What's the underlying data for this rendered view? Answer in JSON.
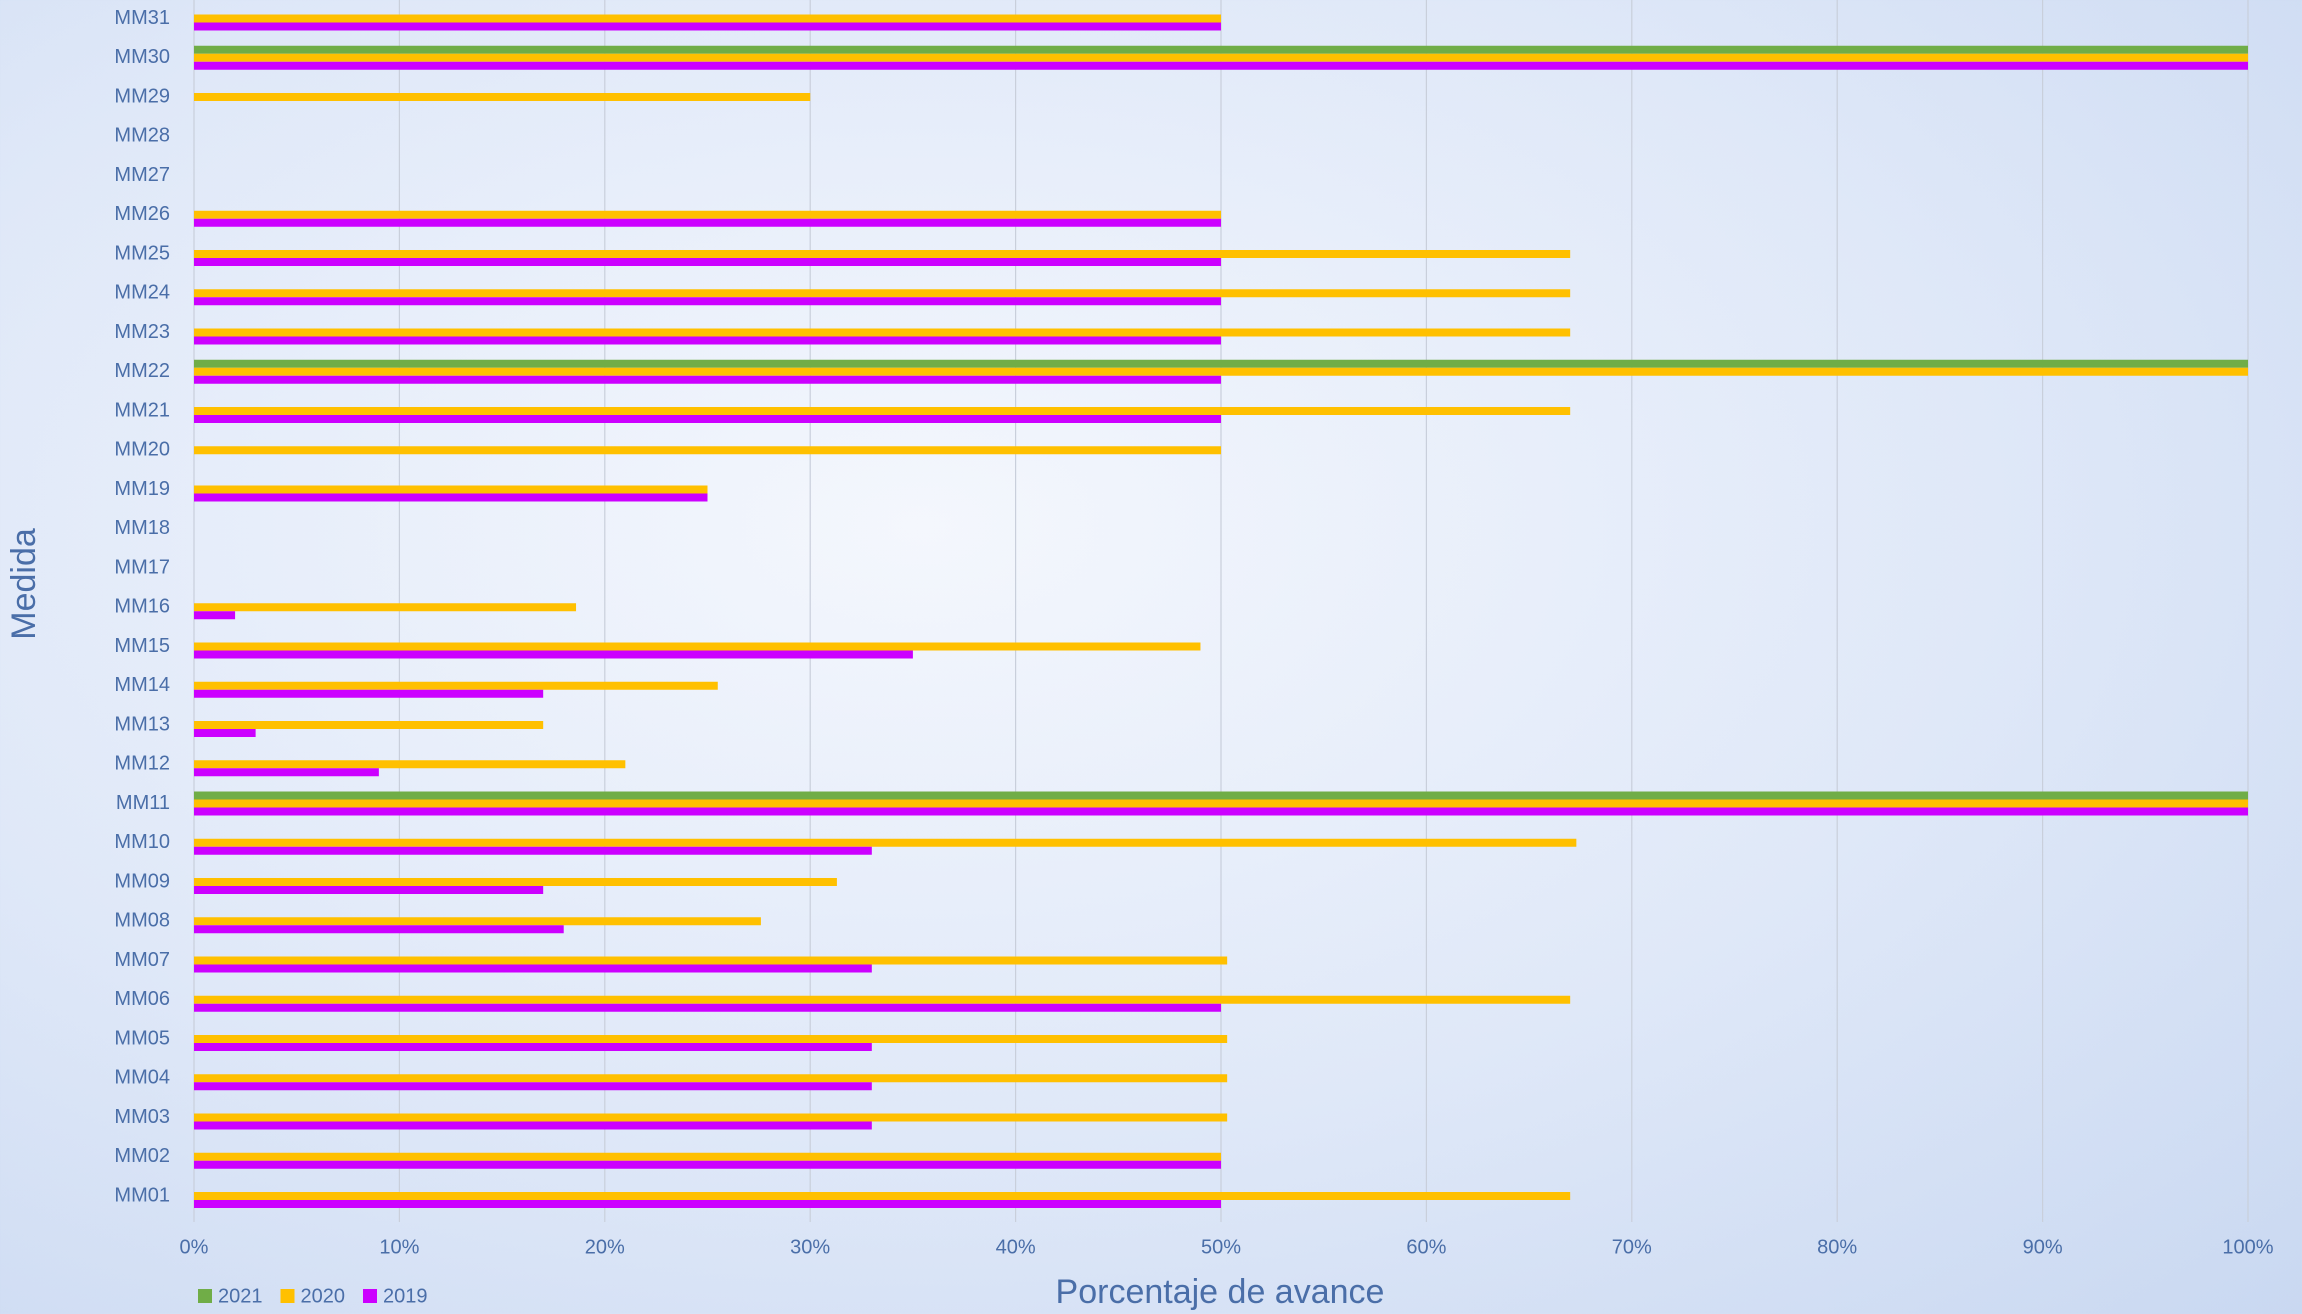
{
  "chart_data": {
    "type": "bar",
    "orientation": "horizontal",
    "x_label": "Porcentaje de avance",
    "y_label": "Medida",
    "categories": [
      "MM01",
      "MM02",
      "MM03",
      "MM04",
      "MM05",
      "MM06",
      "MM07",
      "MM08",
      "MM09",
      "MM10",
      "MM11",
      "MM12",
      "MM13",
      "MM14",
      "MM15",
      "MM16",
      "MM17",
      "MM18",
      "MM19",
      "MM20",
      "MM21",
      "MM22",
      "MM23",
      "MM24",
      "MM25",
      "MM26",
      "MM27",
      "MM28",
      "MM29",
      "MM30",
      "MM31"
    ],
    "series": [
      {
        "name": "2021",
        "color": "#70ad47",
        "values": [
          0,
          0,
          0,
          0,
          0,
          0,
          0,
          0,
          0,
          0,
          100,
          0,
          0,
          0,
          0,
          0,
          0,
          0,
          0,
          0,
          0,
          100,
          0,
          0,
          0,
          0,
          0,
          0,
          0,
          100,
          0
        ]
      },
      {
        "name": "2020",
        "color": "#ffc000",
        "values": [
          67,
          50,
          50.3,
          50.3,
          50.3,
          67,
          50.3,
          27.6,
          31.3,
          67.3,
          100,
          21,
          17,
          25.5,
          49,
          18.6,
          0,
          0,
          25,
          50,
          67,
          100,
          67,
          67,
          67,
          50,
          0,
          0,
          30,
          100,
          50
        ]
      },
      {
        "name": "2019",
        "color": "#cc00ff",
        "values": [
          50,
          50,
          33,
          33,
          33,
          50,
          33,
          18,
          17,
          33,
          100,
          9,
          3,
          17,
          35,
          2,
          0,
          0,
          25,
          0,
          50,
          50,
          50,
          50,
          50,
          50,
          0,
          0,
          0,
          100,
          50
        ]
      }
    ],
    "xlim": [
      0,
      100
    ],
    "xticks": [
      {
        "value": 0,
        "label": "0%"
      },
      {
        "value": 10,
        "label": "10%"
      },
      {
        "value": 20,
        "label": "20%"
      },
      {
        "value": 30,
        "label": "30%"
      },
      {
        "value": 40,
        "label": "40%"
      },
      {
        "value": 50,
        "label": "50%"
      },
      {
        "value": 60,
        "label": "60%"
      },
      {
        "value": 70,
        "label": "70%"
      },
      {
        "value": 80,
        "label": "80%"
      },
      {
        "value": 90,
        "label": "90%"
      },
      {
        "value": 100,
        "label": "100%"
      }
    ],
    "grid": true,
    "legend": "bottom-left"
  }
}
